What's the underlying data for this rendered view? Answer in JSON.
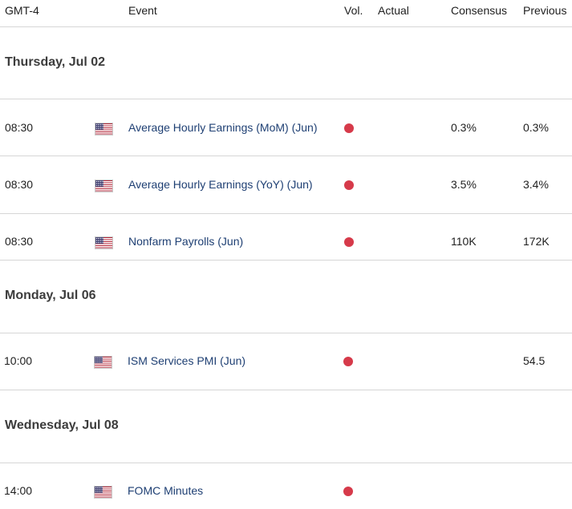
{
  "header": {
    "timezone": "GMT-4",
    "event": "Event",
    "vol": "Vol.",
    "actual": "Actual",
    "consensus": "Consensus",
    "previous": "Previous"
  },
  "days": [
    {
      "label": "Thursday, Jul 02",
      "events": [
        {
          "time": "08:30",
          "country_icon": "us-flag-icon",
          "name": "Average Hourly Earnings (MoM) (Jun)",
          "volatility": "high",
          "actual": "",
          "consensus": "0.3%",
          "previous": "0.3%"
        },
        {
          "time": "08:30",
          "country_icon": "us-flag-icon",
          "name": "Average Hourly Earnings (YoY) (Jun)",
          "volatility": "high",
          "actual": "",
          "consensus": "3.5%",
          "previous": "3.4%"
        },
        {
          "time": "08:30",
          "country_icon": "us-flag-icon",
          "name": "Nonfarm Payrolls (Jun)",
          "volatility": "high",
          "actual": "",
          "consensus": "110K",
          "previous": "172K"
        }
      ]
    },
    {
      "label": "Monday, Jul 06",
      "events": [
        {
          "time": "10:00",
          "country_icon": "us-flag-icon",
          "name": "ISM Services PMI (Jun)",
          "volatility": "high",
          "actual": "",
          "consensus": "",
          "previous": "54.5"
        }
      ]
    },
    {
      "label": "Wednesday, Jul 08",
      "events": [
        {
          "time": "14:00",
          "country_icon": "us-flag-icon",
          "name": "FOMC Minutes",
          "volatility": "high",
          "actual": "",
          "consensus": "",
          "previous": ""
        }
      ]
    }
  ],
  "colors": {
    "event_link": "#1e3f73",
    "volatility_high": "#d63a4a",
    "separator": "#d6d6d6",
    "day_heading": "#3c3c3c"
  }
}
